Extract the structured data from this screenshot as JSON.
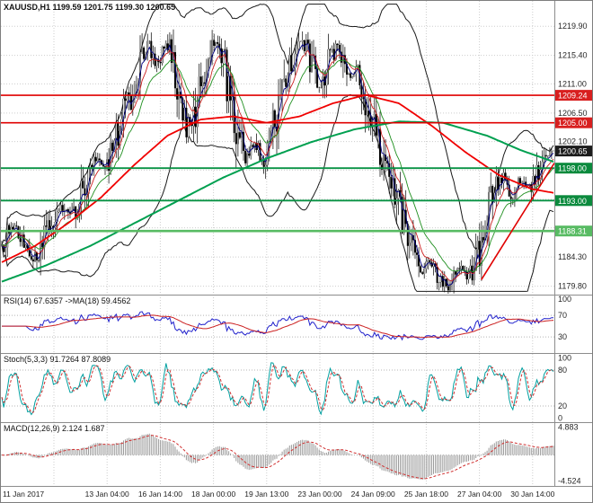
{
  "chart_data": {
    "type": "candlestick",
    "symbol": "XAUUSD",
    "timeframe": "H1",
    "info_label": "XAUUSD,H1 1199.59 1201.75 1199.30 1200.65",
    "open": 1199.59,
    "high": 1201.75,
    "low": 1199.3,
    "close": 1200.65,
    "x_tick_labels": [
      "11 Jan 2017",
      "13 Jan 04:00",
      "16 Jan 14:00",
      "18 Jan 00:00",
      "19 Jan 13:00",
      "23 Jan 00:00",
      "24 Jan 09:00",
      "25 Jan 18:00",
      "27 Jan 04:00",
      "30 Jan 14:00"
    ],
    "main_panel": {
      "ylim": [
        1178.5,
        1223.8
      ],
      "grid_values": [
        1219.9,
        1215.4,
        1211.0,
        1206.5,
        1202.1,
        1197.7,
        1193.2,
        1188.8,
        1184.3,
        1179.8
      ],
      "axis_labels": [
        {
          "value": 1219.9,
          "text": "1219.90"
        },
        {
          "value": 1215.4,
          "text": "1215.40"
        },
        {
          "value": 1211.0,
          "text": "1211.00"
        },
        {
          "value": 1206.5,
          "text": "1206.50"
        },
        {
          "value": 1202.1,
          "text": "1202.10"
        },
        {
          "value": 1184.3,
          "text": "1184.30"
        },
        {
          "value": 1179.8,
          "text": "1179.80"
        }
      ],
      "price_markers": [
        {
          "value": 1209.24,
          "text": "1209.24",
          "kind": "hline",
          "box_color": "#d81f1f",
          "line_color": "#e00000",
          "line_width": 1.6
        },
        {
          "value": 1205.0,
          "text": "1205.00",
          "kind": "hline",
          "box_color": "#d81f1f",
          "line_color": "#e00000",
          "line_width": 1.6
        },
        {
          "value": 1200.65,
          "text": "1200.65",
          "kind": "last-price",
          "box_color": "#1c1c1c"
        },
        {
          "value": 1198.0,
          "text": "1198.00",
          "kind": "hline",
          "box_color": "#0b8a3d",
          "line_color": "#089244",
          "line_width": 1.8
        },
        {
          "value": 1193.0,
          "text": "1193.00",
          "kind": "hline",
          "box_color": "#0b8a3d",
          "line_color": "#089244",
          "line_width": 1.8
        },
        {
          "value": 1188.31,
          "text": "1188.31",
          "kind": "hline",
          "box_color": "#58bb63",
          "line_color": "#58bb63",
          "line_width": 2.6
        }
      ],
      "trendline": {
        "x1": 0.868,
        "p1": 1180.8,
        "x2": 1.0,
        "p2": 1198.8,
        "color": "#e00000"
      },
      "close_path": [
        [
          0.0,
          1186.0
        ],
        [
          0.018,
          1189.5
        ],
        [
          0.04,
          1186.5
        ],
        [
          0.062,
          1183.8
        ],
        [
          0.085,
          1189.0
        ],
        [
          0.105,
          1192.5
        ],
        [
          0.128,
          1190.5
        ],
        [
          0.15,
          1195.0
        ],
        [
          0.17,
          1199.5
        ],
        [
          0.188,
          1197.5
        ],
        [
          0.208,
          1202.5
        ],
        [
          0.228,
          1208.0
        ],
        [
          0.248,
          1213.5
        ],
        [
          0.266,
          1217.0
        ],
        [
          0.283,
          1214.0
        ],
        [
          0.3,
          1217.5
        ],
        [
          0.318,
          1211.5
        ],
        [
          0.335,
          1204.5
        ],
        [
          0.352,
          1206.5
        ],
        [
          0.37,
          1214.0
        ],
        [
          0.388,
          1218.5
        ],
        [
          0.405,
          1213.0
        ],
        [
          0.422,
          1206.0
        ],
        [
          0.44,
          1199.5
        ],
        [
          0.458,
          1202.0
        ],
        [
          0.475,
          1199.0
        ],
        [
          0.492,
          1204.0
        ],
        [
          0.51,
          1210.5
        ],
        [
          0.528,
          1215.5
        ],
        [
          0.545,
          1218.5
        ],
        [
          0.562,
          1213.5
        ],
        [
          0.578,
          1210.0
        ],
        [
          0.595,
          1215.0
        ],
        [
          0.612,
          1217.0
        ],
        [
          0.628,
          1211.5
        ],
        [
          0.645,
          1213.0
        ],
        [
          0.662,
          1208.0
        ],
        [
          0.678,
          1203.5
        ],
        [
          0.695,
          1198.5
        ],
        [
          0.712,
          1194.0
        ],
        [
          0.728,
          1189.5
        ],
        [
          0.745,
          1185.0
        ],
        [
          0.762,
          1181.5
        ],
        [
          0.778,
          1184.0
        ],
        [
          0.795,
          1180.5
        ],
        [
          0.812,
          1179.9
        ],
        [
          0.828,
          1182.5
        ],
        [
          0.845,
          1180.8
        ],
        [
          0.862,
          1184.5
        ],
        [
          0.878,
          1190.0
        ],
        [
          0.895,
          1195.0
        ],
        [
          0.91,
          1197.0
        ],
        [
          0.925,
          1193.5
        ],
        [
          0.94,
          1196.5
        ],
        [
          0.955,
          1194.5
        ],
        [
          0.97,
          1197.5
        ],
        [
          0.985,
          1200.0
        ],
        [
          1.0,
          1200.65
        ]
      ],
      "ma_red_path": [
        [
          0.0,
          1183.5
        ],
        [
          0.06,
          1186.0
        ],
        [
          0.12,
          1189.5
        ],
        [
          0.18,
          1193.5
        ],
        [
          0.24,
          1198.5
        ],
        [
          0.3,
          1203.0
        ],
        [
          0.36,
          1205.5
        ],
        [
          0.42,
          1206.0
        ],
        [
          0.48,
          1205.0
        ],
        [
          0.54,
          1206.0
        ],
        [
          0.6,
          1208.0
        ],
        [
          0.66,
          1209.3
        ],
        [
          0.72,
          1208.0
        ],
        [
          0.78,
          1204.5
        ],
        [
          0.84,
          1200.5
        ],
        [
          0.9,
          1197.0
        ],
        [
          0.96,
          1194.8
        ],
        [
          1.0,
          1194.2
        ]
      ],
      "ma_green_path": [
        [
          0.0,
          1180.5
        ],
        [
          0.08,
          1183.0
        ],
        [
          0.16,
          1186.0
        ],
        [
          0.24,
          1189.5
        ],
        [
          0.32,
          1193.0
        ],
        [
          0.4,
          1196.5
        ],
        [
          0.48,
          1199.5
        ],
        [
          0.56,
          1202.0
        ],
        [
          0.64,
          1204.0
        ],
        [
          0.72,
          1205.2
        ],
        [
          0.8,
          1205.0
        ],
        [
          0.88,
          1203.0
        ],
        [
          0.94,
          1200.8
        ],
        [
          1.0,
          1199.0
        ]
      ]
    },
    "rsi_panel": {
      "label": "RSI(14) 67.6357 ->MA(18) 59.4562",
      "current": 67.6357,
      "ma_current": 59.4562,
      "levels": [
        70,
        30
      ],
      "axis_labels": [
        {
          "value": 100,
          "text": "100"
        },
        {
          "value": 70,
          "text": "70"
        },
        {
          "value": 30,
          "text": "30"
        }
      ],
      "ylim": [
        0,
        107
      ]
    },
    "stoch_panel": {
      "label": "Stoch(5,3,3) 91.7264 87.8089",
      "current_k": 91.7264,
      "current_d": 87.8089,
      "levels": [
        80,
        20
      ],
      "axis_labels": [
        {
          "value": 100,
          "text": "100"
        },
        {
          "value": 80,
          "text": "80"
        },
        {
          "value": 20,
          "text": "20"
        },
        {
          "value": 0,
          "text": "0"
        }
      ],
      "ylim": [
        -7,
        107
      ]
    },
    "macd_panel": {
      "label": "MACD(12,26,9) 2.124 1.687",
      "current_macd": 2.124,
      "current_signal": 1.687,
      "axis_labels": [
        {
          "value": 4.883,
          "text": "4.883"
        },
        {
          "value": -4.524,
          "text": "-4.524"
        }
      ],
      "ylim": [
        -5.4,
        5.6
      ]
    },
    "colors": {
      "grid": "#cdcdcd",
      "bands": "#1a1a1a",
      "candle": "#000000",
      "ma_blue": "#000080",
      "ma_thin_red": "#cc2222",
      "ma_thin_green": "#1f8f1f",
      "ma_red": "#f00000",
      "ma_green": "#00a050",
      "rsi_line": "#2222cc",
      "rsi_ma": "#cc2222",
      "stoch_k": "#00a0a0",
      "stoch_d": "#d03030",
      "macd_hist": "#9a9a9a",
      "macd_signal": "#d03030",
      "axis_text": "#262626",
      "divider": "#8c8c8c"
    }
  }
}
